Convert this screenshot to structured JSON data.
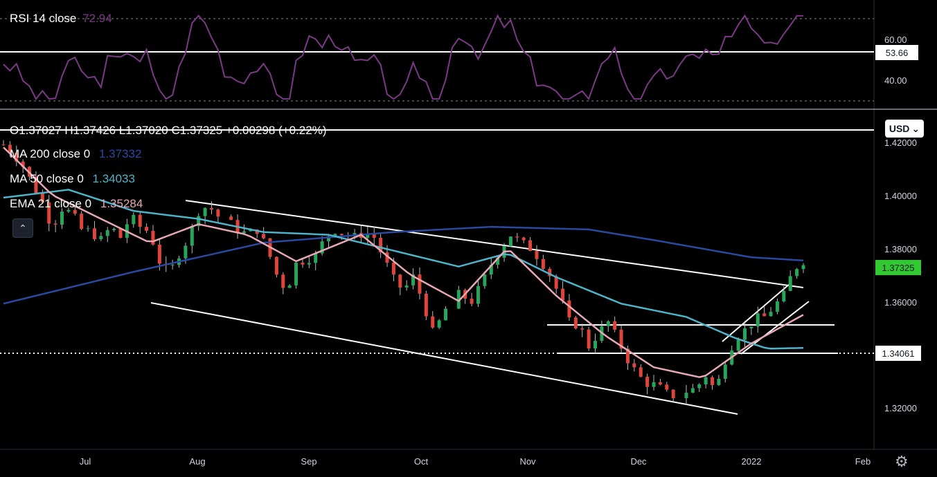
{
  "rsi": {
    "title": "RSI 14 close",
    "value": "72.94",
    "ticks": [
      "60.00",
      "40.00"
    ],
    "level_label": "53.66",
    "color": "#7b3a86"
  },
  "ohlc": {
    "text": "O1.37027  H1.37426  L1.37020  C1.37325  +0.00298 (+0.22%)"
  },
  "legend": [
    {
      "name": "MA 200 close 0",
      "value": "1.37332",
      "color": "#2a4aa0"
    },
    {
      "name": "MA 50 close 0",
      "value": "1.34033",
      "color": "#4fb3c9"
    },
    {
      "name": "EMA 21 close 0",
      "value": "1.35284",
      "color": "#e8a9b5"
    }
  ],
  "currency": "USD",
  "price_ticks": [
    "1.42000",
    "1.40000",
    "1.38000",
    "1.36000",
    "1.34000",
    "1.32000"
  ],
  "last_price_label": "1.37325",
  "level_label": "1.34061",
  "time_ticks": [
    "Jul",
    "Aug",
    "Sep",
    "Oct",
    "Nov",
    "Dec",
    "2022",
    "Feb"
  ],
  "colors": {
    "up": "#26a65b",
    "down": "#e0453a",
    "bg": "#000000",
    "last": "#32c832"
  },
  "chart_data": {
    "type": "candlestick",
    "ylim": [
      1.3075,
      1.4275
    ],
    "x_categories": [
      "Jul",
      "Aug",
      "Sep",
      "Oct",
      "Nov",
      "Dec",
      "2022",
      "Feb"
    ],
    "y_ticks": [
      1.42,
      1.4,
      1.38,
      1.36,
      1.34,
      1.32
    ],
    "candles_close_path": [
      [
        0,
        1.417
      ],
      [
        3,
        1.414
      ],
      [
        6,
        1.409
      ],
      [
        9,
        1.402
      ],
      [
        12,
        1.395
      ],
      [
        15,
        1.386
      ],
      [
        18,
        1.393
      ],
      [
        21,
        1.391
      ],
      [
        24,
        1.385
      ],
      [
        27,
        1.384
      ],
      [
        30,
        1.381
      ],
      [
        33,
        1.386
      ],
      [
        36,
        1.382
      ],
      [
        39,
        1.39
      ],
      [
        42,
        1.386
      ],
      [
        45,
        1.384
      ],
      [
        48,
        1.373
      ],
      [
        51,
        1.368
      ],
      [
        54,
        1.376
      ],
      [
        57,
        1.382
      ],
      [
        60,
        1.392
      ],
      [
        63,
        1.394
      ],
      [
        66,
        1.39
      ],
      [
        69,
        1.388
      ],
      [
        72,
        1.385
      ],
      [
        75,
        1.383
      ],
      [
        78,
        1.385
      ],
      [
        81,
        1.378
      ],
      [
        84,
        1.368
      ],
      [
        87,
        1.362
      ],
      [
        90,
        1.372
      ],
      [
        93,
        1.374
      ],
      [
        96,
        1.375
      ],
      [
        99,
        1.382
      ],
      [
        102,
        1.385
      ],
      [
        105,
        1.383
      ],
      [
        108,
        1.382
      ],
      [
        111,
        1.384
      ],
      [
        114,
        1.382
      ],
      [
        117,
        1.374
      ],
      [
        120,
        1.366
      ],
      [
        123,
        1.362
      ],
      [
        126,
        1.367
      ],
      [
        129,
        1.358
      ],
      [
        132,
        1.346
      ],
      [
        135,
        1.352
      ],
      [
        138,
        1.361
      ],
      [
        141,
        1.36
      ],
      [
        144,
        1.358
      ],
      [
        147,
        1.364
      ],
      [
        150,
        1.372
      ],
      [
        153,
        1.378
      ],
      [
        156,
        1.383
      ],
      [
        159,
        1.38
      ],
      [
        162,
        1.378
      ],
      [
        165,
        1.374
      ],
      [
        168,
        1.368
      ],
      [
        171,
        1.36
      ],
      [
        174,
        1.35
      ],
      [
        177,
        1.349
      ],
      [
        180,
        1.341
      ],
      [
        183,
        1.346
      ],
      [
        186,
        1.35
      ],
      [
        189,
        1.343
      ],
      [
        192,
        1.336
      ],
      [
        195,
        1.33
      ],
      [
        198,
        1.327
      ],
      [
        201,
        1.326
      ],
      [
        204,
        1.323
      ],
      [
        207,
        1.322
      ],
      [
        210,
        1.324
      ],
      [
        213,
        1.325
      ],
      [
        216,
        1.33
      ],
      [
        219,
        1.324
      ],
      [
        222,
        1.336
      ],
      [
        225,
        1.344
      ],
      [
        228,
        1.347
      ],
      [
        231,
        1.351
      ],
      [
        234,
        1.352
      ],
      [
        237,
        1.356
      ],
      [
        240,
        1.36
      ],
      [
        243,
        1.37
      ],
      [
        246,
        1.3733
      ]
    ],
    "series": [
      {
        "name": "MA 200 close 0",
        "points": [
          [
            0,
            1.357
          ],
          [
            40,
            1.369
          ],
          [
            80,
            1.38
          ],
          [
            120,
            1.384
          ],
          [
            150,
            1.386
          ],
          [
            180,
            1.385
          ],
          [
            200,
            1.381
          ],
          [
            230,
            1.3745
          ],
          [
            246,
            1.3733
          ]
        ]
      },
      {
        "name": "MA 50 close 0",
        "points": [
          [
            0,
            1.397
          ],
          [
            20,
            1.4
          ],
          [
            40,
            1.392
          ],
          [
            60,
            1.389
          ],
          [
            80,
            1.384
          ],
          [
            100,
            1.383
          ],
          [
            120,
            1.377
          ],
          [
            140,
            1.371
          ],
          [
            155,
            1.376
          ],
          [
            170,
            1.367
          ],
          [
            190,
            1.357
          ],
          [
            210,
            1.352
          ],
          [
            225,
            1.344
          ],
          [
            235,
            1.34
          ],
          [
            246,
            1.3403
          ]
        ]
      },
      {
        "name": "EMA 21 close 0",
        "points": [
          [
            0,
            1.416
          ],
          [
            15,
            1.398
          ],
          [
            30,
            1.389
          ],
          [
            45,
            1.38
          ],
          [
            60,
            1.387
          ],
          [
            75,
            1.383
          ],
          [
            90,
            1.373
          ],
          [
            110,
            1.383
          ],
          [
            125,
            1.368
          ],
          [
            140,
            1.358
          ],
          [
            155,
            1.378
          ],
          [
            170,
            1.36
          ],
          [
            185,
            1.345
          ],
          [
            200,
            1.333
          ],
          [
            215,
            1.329
          ],
          [
            230,
            1.342
          ],
          [
            246,
            1.3528
          ]
        ]
      }
    ],
    "rsi_series": {
      "name": "RSI 14 close",
      "last": 72.94,
      "ylim": [
        25,
        80
      ]
    }
  }
}
